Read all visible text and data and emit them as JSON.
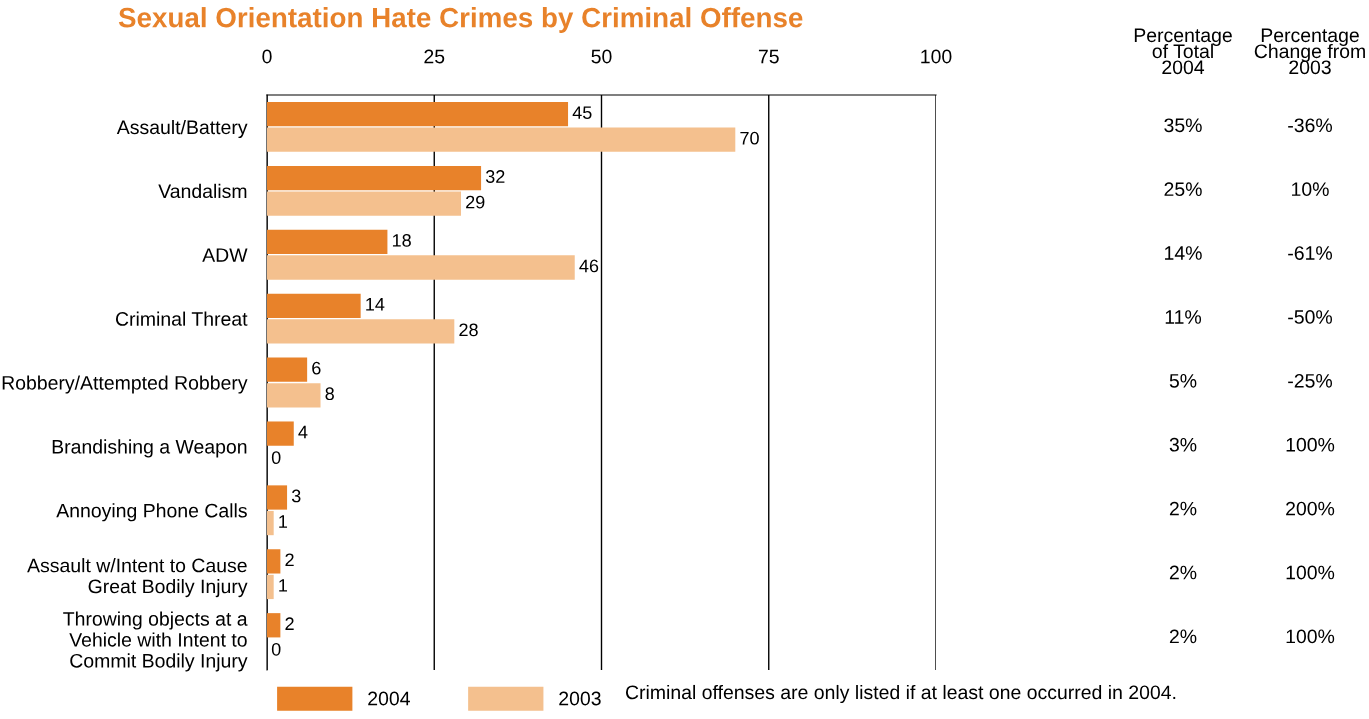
{
  "chart_data": {
    "type": "bar",
    "orientation": "horizontal",
    "title": "Sexual Orientation Hate Crimes by Criminal Offense",
    "categories": [
      "Assault/Battery",
      "Vandalism",
      "ADW",
      "Criminal Threat",
      "Robbery/Attempted Robbery",
      "Brandishing a Weapon",
      "Annoying Phone Calls",
      "Assault w/Intent to Cause\nGreat Bodily Injury",
      "Throwing objects at a\nVehicle with Intent to\nCommit Bodily Injury"
    ],
    "series": [
      {
        "name": "2004",
        "color": "#e8822a",
        "values": [
          45,
          32,
          18,
          14,
          6,
          4,
          3,
          2,
          2
        ]
      },
      {
        "name": "2003",
        "color": "#f4c08e",
        "values": [
          70,
          29,
          46,
          28,
          8,
          0,
          1,
          1,
          0
        ]
      }
    ],
    "xlim": [
      0,
      100
    ],
    "xticks": [
      0,
      25,
      50,
      75,
      100
    ],
    "grid": "x",
    "data_labels": true,
    "legend": "bottom",
    "annotations": [
      "Percentage\nof Total\n2004",
      "Percentage\nChange from\n2003",
      "35%",
      "25%",
      "14%",
      "11%",
      "5%",
      "3%",
      "2%",
      "2%",
      "2%",
      "-36%",
      "10%",
      "-61%",
      "-50%",
      "-25%",
      "100%",
      "200%",
      "100%",
      "100%",
      "Criminal offenses are only listed if at least one occurred in 2004."
    ]
  }
}
